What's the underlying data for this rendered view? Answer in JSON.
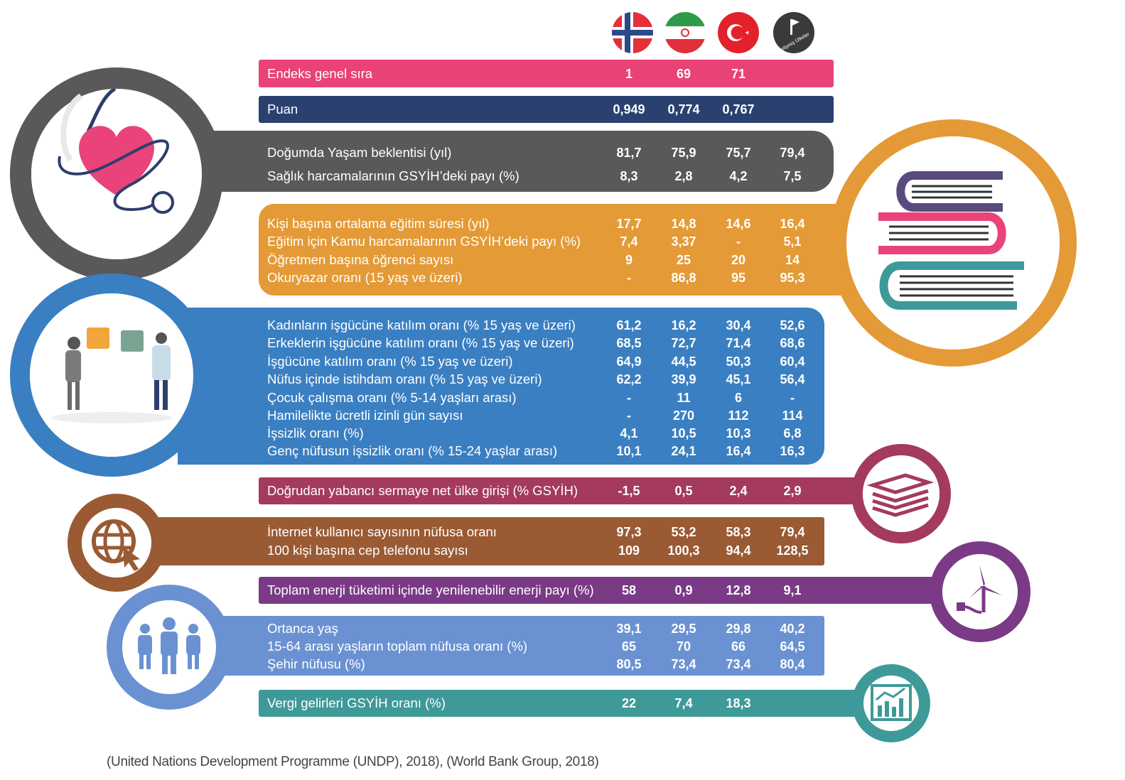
{
  "flags": [
    {
      "name": "norway-flag-icon"
    },
    {
      "name": "iran-flag-icon"
    },
    {
      "name": "turkey-flag-icon"
    },
    {
      "name": "developed-countries-icon",
      "label": "Gelişmiş Ülkeler"
    }
  ],
  "sections": {
    "rank": {
      "color": "#e94277",
      "rows": [
        {
          "label": "Endeks genel sıra",
          "v": [
            "1",
            "69",
            "71",
            ""
          ]
        }
      ]
    },
    "score": {
      "color": "#2a4170",
      "rows": [
        {
          "label": "Puan",
          "v": [
            "0,949",
            "0,774",
            "0,767",
            ""
          ]
        }
      ]
    },
    "health": {
      "color": "#595959",
      "rows": [
        {
          "label": "Doğumda Yaşam beklentisi (yıl)",
          "v": [
            "81,7",
            "75,9",
            "75,7",
            "79,4"
          ]
        },
        {
          "label": "Sağlık harcamalarının GSYİH’deki payı (%)",
          "v": [
            "8,3",
            "2,8",
            "4,2",
            "7,5"
          ]
        }
      ]
    },
    "education": {
      "color": "#e49a36",
      "rows": [
        {
          "label": "Kişi başına ortalama eğitim süresi (yıl)",
          "v": [
            "17,7",
            "14,8",
            "14,6",
            "16,4"
          ]
        },
        {
          "label": "Eğitim için Kamu harcamalarının GSYİH’deki payı  (%)",
          "v": [
            "7,4",
            "3,37",
            "-",
            "5,1"
          ]
        },
        {
          "label": "Öğretmen başına öğrenci sayısı",
          "v": [
            "9",
            "25",
            "20",
            "14"
          ]
        },
        {
          "label": "Okuryazar oranı (15 yaş ve üzeri)",
          "v": [
            "-",
            "86,8",
            "95",
            "95,3"
          ]
        }
      ]
    },
    "labor": {
      "color": "#3a7fc2",
      "rows": [
        {
          "label": "Kadınların işgücüne katılım oranı (% 15 yaş ve üzeri)",
          "v": [
            "61,2",
            "16,2",
            "30,4",
            "52,6"
          ]
        },
        {
          "label": "Erkeklerin işgücüne katılım oranı (% 15 yaş ve üzeri)",
          "v": [
            "68,5",
            "72,7",
            "71,4",
            "68,6"
          ]
        },
        {
          "label": "İşgücüne katılım oranı (% 15 yaş ve üzeri)",
          "v": [
            "64,9",
            "44,5",
            "50,3",
            "60,4"
          ]
        },
        {
          "label": "Nüfus içinde istihdam oranı (% 15 yaş ve üzeri)",
          "v": [
            "62,2",
            "39,9",
            "45,1",
            "56,4"
          ]
        },
        {
          "label": "Çocuk çalışma oranı (% 5-14 yaşları arası)",
          "v": [
            "-",
            "11",
            "6",
            "-"
          ]
        },
        {
          "label": "Hamilelikte ücretli izinli gün sayısı",
          "v": [
            "-",
            "270",
            "112",
            "114"
          ]
        },
        {
          "label": "İşsizlik oranı (%)",
          "v": [
            "4,1",
            "10,5",
            "10,3",
            "6,8"
          ]
        },
        {
          "label": "Genç nüfusun işsizlik oranı (% 15-24 yaşlar arası)",
          "v": [
            "10,1",
            "24,1",
            "16,4",
            "16,3"
          ]
        }
      ]
    },
    "fdi": {
      "color": "#a43a5e",
      "rows": [
        {
          "label": "Doğrudan yabancı sermaye net ülke girişi (% GSYİH)",
          "v": [
            "-1,5",
            "0,5",
            "2,4",
            "2,9"
          ]
        }
      ]
    },
    "internet": {
      "color": "#9a5a34",
      "rows": [
        {
          "label": "İnternet kullanıcı sayısının nüfusa oranı",
          "v": [
            "97,3",
            "53,2",
            "58,3",
            "79,4"
          ]
        },
        {
          "label": "100 kişi başına cep telefonu sayısı",
          "v": [
            "109",
            "100,3",
            "94,4",
            "128,5"
          ]
        }
      ]
    },
    "energy": {
      "color": "#7a3a86",
      "rows": [
        {
          "label": "Toplam enerji tüketimi içinde yenilenebilir enerji payı  (%)",
          "v": [
            "58",
            "0,9",
            "12,8",
            "9,1"
          ]
        }
      ]
    },
    "population": {
      "color": "#6a92d2",
      "rows": [
        {
          "label": "Ortanca yaş",
          "v": [
            "39,1",
            "29,5",
            "29,8",
            "40,2"
          ]
        },
        {
          "label": "15-64 arası yaşların toplam nüfusa oranı (%)",
          "v": [
            "65",
            "70",
            "66",
            "64,5"
          ]
        },
        {
          "label": "Şehir nüfusu (%)",
          "v": [
            "80,5",
            "73,4",
            "73,4",
            "80,4"
          ]
        }
      ]
    },
    "tax": {
      "color": "#3e9a98",
      "rows": [
        {
          "label": "Vergi gelirleri GSYİH oranı  (%)",
          "v": [
            "22",
            "7,4",
            "18,3",
            ""
          ]
        }
      ]
    }
  },
  "source": "(United Nations Development Programme (UNDP), 2018), (World Bank Group, 2018)"
}
